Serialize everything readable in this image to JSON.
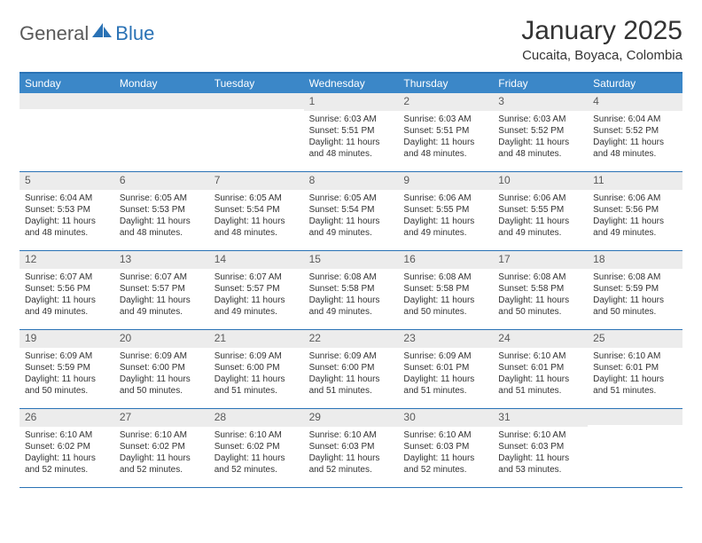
{
  "brand": {
    "part1": "General",
    "part2": "Blue"
  },
  "title": "January 2025",
  "location": "Cucaita, Boyaca, Colombia",
  "colors": {
    "header_bg": "#3b87c8",
    "rule": "#2a72b5",
    "daynum_bg": "#ececec",
    "text": "#333333",
    "muted": "#5a5a5a"
  },
  "dow": [
    "Sunday",
    "Monday",
    "Tuesday",
    "Wednesday",
    "Thursday",
    "Friday",
    "Saturday"
  ],
  "weeks": [
    [
      null,
      null,
      null,
      {
        "n": "1",
        "sr": "6:03 AM",
        "ss": "5:51 PM",
        "dl": "11 hours and 48 minutes."
      },
      {
        "n": "2",
        "sr": "6:03 AM",
        "ss": "5:51 PM",
        "dl": "11 hours and 48 minutes."
      },
      {
        "n": "3",
        "sr": "6:03 AM",
        "ss": "5:52 PM",
        "dl": "11 hours and 48 minutes."
      },
      {
        "n": "4",
        "sr": "6:04 AM",
        "ss": "5:52 PM",
        "dl": "11 hours and 48 minutes."
      }
    ],
    [
      {
        "n": "5",
        "sr": "6:04 AM",
        "ss": "5:53 PM",
        "dl": "11 hours and 48 minutes."
      },
      {
        "n": "6",
        "sr": "6:05 AM",
        "ss": "5:53 PM",
        "dl": "11 hours and 48 minutes."
      },
      {
        "n": "7",
        "sr": "6:05 AM",
        "ss": "5:54 PM",
        "dl": "11 hours and 48 minutes."
      },
      {
        "n": "8",
        "sr": "6:05 AM",
        "ss": "5:54 PM",
        "dl": "11 hours and 49 minutes."
      },
      {
        "n": "9",
        "sr": "6:06 AM",
        "ss": "5:55 PM",
        "dl": "11 hours and 49 minutes."
      },
      {
        "n": "10",
        "sr": "6:06 AM",
        "ss": "5:55 PM",
        "dl": "11 hours and 49 minutes."
      },
      {
        "n": "11",
        "sr": "6:06 AM",
        "ss": "5:56 PM",
        "dl": "11 hours and 49 minutes."
      }
    ],
    [
      {
        "n": "12",
        "sr": "6:07 AM",
        "ss": "5:56 PM",
        "dl": "11 hours and 49 minutes."
      },
      {
        "n": "13",
        "sr": "6:07 AM",
        "ss": "5:57 PM",
        "dl": "11 hours and 49 minutes."
      },
      {
        "n": "14",
        "sr": "6:07 AM",
        "ss": "5:57 PM",
        "dl": "11 hours and 49 minutes."
      },
      {
        "n": "15",
        "sr": "6:08 AM",
        "ss": "5:58 PM",
        "dl": "11 hours and 49 minutes."
      },
      {
        "n": "16",
        "sr": "6:08 AM",
        "ss": "5:58 PM",
        "dl": "11 hours and 50 minutes."
      },
      {
        "n": "17",
        "sr": "6:08 AM",
        "ss": "5:58 PM",
        "dl": "11 hours and 50 minutes."
      },
      {
        "n": "18",
        "sr": "6:08 AM",
        "ss": "5:59 PM",
        "dl": "11 hours and 50 minutes."
      }
    ],
    [
      {
        "n": "19",
        "sr": "6:09 AM",
        "ss": "5:59 PM",
        "dl": "11 hours and 50 minutes."
      },
      {
        "n": "20",
        "sr": "6:09 AM",
        "ss": "6:00 PM",
        "dl": "11 hours and 50 minutes."
      },
      {
        "n": "21",
        "sr": "6:09 AM",
        "ss": "6:00 PM",
        "dl": "11 hours and 51 minutes."
      },
      {
        "n": "22",
        "sr": "6:09 AM",
        "ss": "6:00 PM",
        "dl": "11 hours and 51 minutes."
      },
      {
        "n": "23",
        "sr": "6:09 AM",
        "ss": "6:01 PM",
        "dl": "11 hours and 51 minutes."
      },
      {
        "n": "24",
        "sr": "6:10 AM",
        "ss": "6:01 PM",
        "dl": "11 hours and 51 minutes."
      },
      {
        "n": "25",
        "sr": "6:10 AM",
        "ss": "6:01 PM",
        "dl": "11 hours and 51 minutes."
      }
    ],
    [
      {
        "n": "26",
        "sr": "6:10 AM",
        "ss": "6:02 PM",
        "dl": "11 hours and 52 minutes."
      },
      {
        "n": "27",
        "sr": "6:10 AM",
        "ss": "6:02 PM",
        "dl": "11 hours and 52 minutes."
      },
      {
        "n": "28",
        "sr": "6:10 AM",
        "ss": "6:02 PM",
        "dl": "11 hours and 52 minutes."
      },
      {
        "n": "29",
        "sr": "6:10 AM",
        "ss": "6:03 PM",
        "dl": "11 hours and 52 minutes."
      },
      {
        "n": "30",
        "sr": "6:10 AM",
        "ss": "6:03 PM",
        "dl": "11 hours and 52 minutes."
      },
      {
        "n": "31",
        "sr": "6:10 AM",
        "ss": "6:03 PM",
        "dl": "11 hours and 53 minutes."
      },
      null
    ]
  ],
  "labels": {
    "sunrise": "Sunrise:",
    "sunset": "Sunset:",
    "daylight": "Daylight:"
  }
}
